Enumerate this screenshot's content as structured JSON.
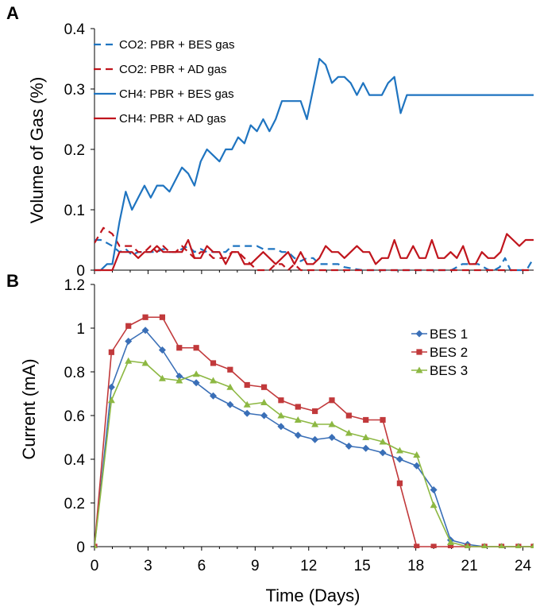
{
  "chart_data": [
    {
      "panel": "A",
      "type": "line",
      "ylabel": "Volume of Gas (%)",
      "xlim": [
        0,
        24.6
      ],
      "ylim": [
        0,
        0.4
      ],
      "yticks": [
        "0",
        "0.1",
        "0.2",
        "0.3",
        "0.4"
      ],
      "grid": false,
      "legend_position": "top-left",
      "series": [
        {
          "name": "CO2: PBR + BES gas",
          "color": "#1f74c0",
          "dash": true,
          "x": [
            0,
            0.35,
            0.7,
            1.0,
            1.4,
            1.75,
            2.1,
            2.45,
            2.8,
            3.15,
            3.5,
            3.85,
            4.2,
            4.55,
            4.9,
            5.25,
            5.6,
            5.95,
            6.3,
            6.65,
            7.0,
            7.35,
            7.7,
            8.05,
            8.4,
            8.75,
            9.1,
            9.45,
            9.8,
            10.15,
            10.5,
            10.85,
            11.2,
            11.55,
            11.9,
            12.25,
            12.6,
            12.95,
            13.3,
            13.65,
            14.0,
            15.0,
            16.0,
            17.0,
            18.0,
            19.0,
            20.0,
            20.3,
            20.6,
            20.9,
            21.2,
            21.5,
            21.8,
            22.1,
            22.4,
            22.7,
            23.0,
            23.3,
            23.6,
            23.9,
            24.2,
            24.6
          ],
          "y": [
            0.05,
            0.05,
            0.045,
            0.04,
            0.03,
            0.035,
            0.025,
            0.03,
            0.03,
            0.03,
            0.03,
            0.035,
            0.03,
            0.03,
            0.035,
            0.04,
            0.03,
            0.035,
            0.03,
            0.03,
            0.03,
            0.03,
            0.04,
            0.04,
            0.04,
            0.04,
            0.04,
            0.035,
            0.035,
            0.035,
            0.03,
            0.03,
            0.02,
            0.015,
            0.02,
            0.02,
            0.01,
            0.01,
            0.01,
            0.01,
            0.005,
            0.0,
            0.0,
            0.0,
            0.0,
            0.0,
            0.0,
            0.005,
            0.01,
            0.01,
            0.01,
            0.01,
            0.005,
            0.0,
            0.0,
            0.005,
            0.02,
            0.0,
            0.0,
            0.0,
            0.0,
            0.02
          ]
        },
        {
          "name": "CO2: PBR + AD gas",
          "color": "#c0151d",
          "dash": true,
          "x": [
            0,
            0.5,
            1.0,
            1.4,
            1.75,
            2.1,
            2.45,
            2.8,
            3.15,
            3.5,
            3.85,
            4.2,
            4.55,
            4.9,
            5.25,
            5.6,
            5.95,
            6.3,
            6.65,
            7.0,
            7.35,
            7.7,
            8.05,
            8.4,
            8.75,
            9.1,
            9.45,
            9.8,
            10.15,
            10.5,
            10.85,
            11.2,
            11.55,
            11.9,
            12.25,
            13.0,
            14.0,
            16.0,
            18.0,
            20.0,
            22.0,
            24.0,
            24.6
          ],
          "y": [
            0.045,
            0.07,
            0.06,
            0.04,
            0.04,
            0.04,
            0.03,
            0.03,
            0.04,
            0.03,
            0.04,
            0.03,
            0.03,
            0.04,
            0.03,
            0.02,
            0.03,
            0.03,
            0.02,
            0.02,
            0.02,
            0.03,
            0.03,
            0.02,
            0.01,
            0.0,
            0.0,
            0.0,
            0.01,
            0.01,
            0.0,
            0.01,
            0.0,
            0.0,
            0.0,
            0.0,
            0.0,
            0.0,
            0.0,
            0.0,
            0.0,
            0.0,
            0.0
          ]
        },
        {
          "name": "CH4: PBR + BES gas",
          "color": "#1f74c0",
          "dash": false,
          "x": [
            0,
            0.35,
            0.7,
            1.0,
            1.4,
            1.75,
            2.1,
            2.45,
            2.8,
            3.15,
            3.5,
            3.85,
            4.2,
            4.55,
            4.9,
            5.25,
            5.6,
            5.95,
            6.3,
            6.65,
            7.0,
            7.35,
            7.7,
            8.05,
            8.4,
            8.75,
            9.1,
            9.45,
            9.8,
            10.15,
            10.5,
            10.85,
            11.2,
            11.55,
            11.9,
            12.25,
            12.6,
            12.95,
            13.3,
            13.65,
            14.0,
            14.35,
            14.7,
            15.05,
            15.4,
            15.75,
            16.1,
            16.45,
            16.8,
            17.15,
            17.5,
            17.85,
            18.2,
            18.55,
            18.9,
            19.25,
            19.6,
            19.95,
            20.3,
            20.65,
            21.0,
            21.35,
            21.7,
            22.05,
            22.4,
            22.75,
            23.1,
            23.45,
            23.8,
            24.15,
            24.6
          ],
          "y": [
            0.0,
            0.0,
            0.01,
            0.01,
            0.08,
            0.13,
            0.1,
            0.12,
            0.14,
            0.12,
            0.14,
            0.14,
            0.13,
            0.15,
            0.17,
            0.16,
            0.14,
            0.18,
            0.2,
            0.19,
            0.18,
            0.2,
            0.2,
            0.22,
            0.21,
            0.24,
            0.23,
            0.25,
            0.23,
            0.25,
            0.28,
            0.28,
            0.28,
            0.28,
            0.25,
            0.3,
            0.35,
            0.34,
            0.31,
            0.32,
            0.32,
            0.31,
            0.29,
            0.31,
            0.29,
            0.29,
            0.29,
            0.31,
            0.32,
            0.26,
            0.29,
            0.29,
            0.29,
            0.29,
            0.29,
            0.29,
            0.29,
            0.29,
            0.29,
            0.29,
            0.29,
            0.29,
            0.29,
            0.29,
            0.29,
            0.29,
            0.29,
            0.29,
            0.29,
            0.29,
            0.29
          ]
        },
        {
          "name": "CH4: PBR + AD gas",
          "color": "#c0151d",
          "dash": false,
          "x": [
            0,
            0.7,
            1.0,
            1.4,
            1.75,
            2.1,
            2.45,
            2.8,
            3.15,
            3.5,
            3.85,
            4.2,
            4.55,
            4.9,
            5.25,
            5.6,
            5.95,
            6.3,
            6.65,
            7.0,
            7.35,
            7.7,
            8.05,
            8.4,
            8.75,
            9.1,
            9.45,
            9.8,
            10.15,
            10.5,
            10.85,
            11.2,
            11.55,
            11.9,
            12.25,
            12.6,
            12.95,
            13.3,
            13.65,
            14.0,
            14.35,
            14.7,
            15.05,
            15.4,
            15.75,
            16.1,
            16.45,
            16.8,
            17.15,
            17.5,
            17.85,
            18.2,
            18.55,
            18.9,
            19.25,
            19.6,
            19.95,
            20.3,
            20.65,
            21.0,
            21.35,
            21.7,
            22.05,
            22.4,
            22.75,
            23.1,
            23.45,
            23.8,
            24.15,
            24.6
          ],
          "y": [
            0.0,
            0.0,
            0.0,
            0.03,
            0.03,
            0.03,
            0.02,
            0.03,
            0.03,
            0.04,
            0.03,
            0.03,
            0.03,
            0.03,
            0.05,
            0.02,
            0.02,
            0.04,
            0.03,
            0.03,
            0.01,
            0.03,
            0.03,
            0.01,
            0.01,
            0.02,
            0.03,
            0.02,
            0.01,
            0.02,
            0.03,
            0.01,
            0.03,
            0.01,
            0.01,
            0.02,
            0.04,
            0.03,
            0.03,
            0.02,
            0.03,
            0.04,
            0.03,
            0.03,
            0.01,
            0.02,
            0.02,
            0.05,
            0.02,
            0.02,
            0.04,
            0.02,
            0.02,
            0.05,
            0.02,
            0.02,
            0.03,
            0.02,
            0.04,
            0.01,
            0.01,
            0.03,
            0.02,
            0.02,
            0.03,
            0.06,
            0.05,
            0.04,
            0.05,
            0.05
          ]
        }
      ]
    },
    {
      "panel": "B",
      "type": "line",
      "xlabel": "Time (Days)",
      "ylabel": "Current (mA)",
      "xlim": [
        0,
        24.6
      ],
      "ylim": [
        0,
        1.2
      ],
      "xticks": [
        "0",
        "3",
        "6",
        "9",
        "12",
        "15",
        "18",
        "21",
        "24"
      ],
      "yticks": [
        "0",
        "0.2",
        "0.4",
        "0.6",
        "0.8",
        "1",
        "1.2"
      ],
      "grid": false,
      "legend_position": "top-right",
      "series": [
        {
          "name": "BES 1",
          "color": "#3a6fb7",
          "marker": "diamond",
          "x": [
            0,
            0.95,
            1.9,
            2.85,
            3.8,
            4.75,
            5.7,
            6.65,
            7.6,
            8.55,
            9.5,
            10.45,
            11.4,
            12.35,
            13.3,
            14.25,
            15.2,
            16.15,
            17.1,
            18.05,
            19.0,
            19.95,
            20.9,
            21.85,
            22.8,
            23.75,
            24.6
          ],
          "y": [
            0.0,
            0.73,
            0.94,
            0.99,
            0.9,
            0.78,
            0.75,
            0.69,
            0.65,
            0.61,
            0.6,
            0.55,
            0.51,
            0.49,
            0.5,
            0.46,
            0.45,
            0.43,
            0.4,
            0.37,
            0.26,
            0.03,
            0.01,
            0.0,
            0.0,
            0.0,
            0.0
          ]
        },
        {
          "name": "BES 2",
          "color": "#c1393b",
          "marker": "square",
          "x": [
            0,
            0.95,
            1.9,
            2.85,
            3.8,
            4.75,
            5.7,
            6.65,
            7.6,
            8.55,
            9.5,
            10.45,
            11.4,
            12.35,
            13.3,
            14.25,
            15.2,
            16.15,
            17.1,
            18.05,
            19.0,
            19.95,
            20.9,
            21.85,
            22.8,
            23.75,
            24.6
          ],
          "y": [
            0.0,
            0.89,
            1.01,
            1.05,
            1.05,
            0.91,
            0.91,
            0.84,
            0.81,
            0.74,
            0.73,
            0.67,
            0.64,
            0.62,
            0.67,
            0.6,
            0.58,
            0.58,
            0.29,
            0.0,
            0.0,
            0.0,
            0.0,
            0.0,
            0.0,
            0.0,
            0.0
          ]
        },
        {
          "name": "BES 3",
          "color": "#8db843",
          "marker": "triangle",
          "x": [
            0,
            0.95,
            1.9,
            2.85,
            3.8,
            4.75,
            5.7,
            6.65,
            7.6,
            8.55,
            9.5,
            10.45,
            11.4,
            12.35,
            13.3,
            14.25,
            15.2,
            16.15,
            17.1,
            18.05,
            19.0,
            19.95,
            20.9,
            21.85,
            22.8,
            23.75,
            24.6
          ],
          "y": [
            0.0,
            0.67,
            0.85,
            0.84,
            0.77,
            0.76,
            0.79,
            0.76,
            0.73,
            0.65,
            0.66,
            0.6,
            0.58,
            0.56,
            0.56,
            0.52,
            0.5,
            0.48,
            0.44,
            0.42,
            0.19,
            0.02,
            0.0,
            0.0,
            0.0,
            0.0,
            0.0
          ]
        }
      ]
    }
  ]
}
